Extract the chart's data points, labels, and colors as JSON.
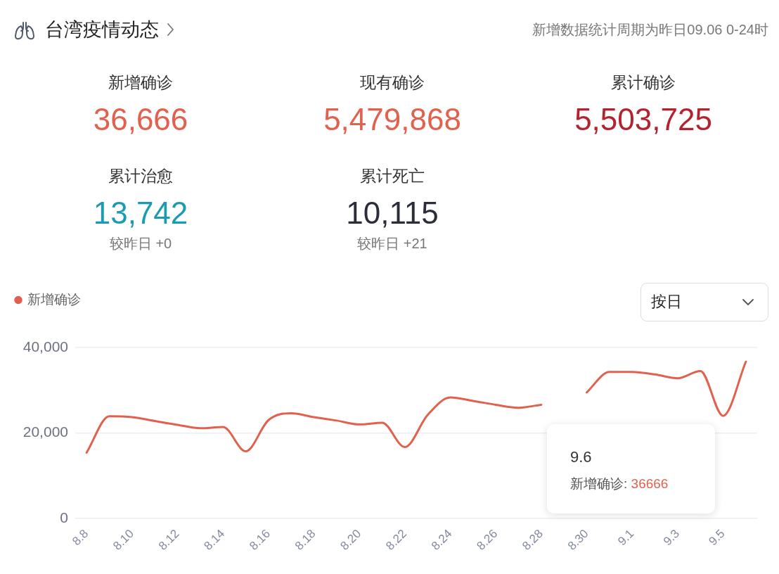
{
  "chart_data": [
    {
      "type": "other",
      "title": "台湾疫情动态",
      "subtitle": "新增数据统计周期为昨日09.06 0-24时",
      "categories": [
        "新增确诊",
        "现有确诊",
        "累计确诊",
        "累计治愈",
        "累计死亡"
      ],
      "value_labels": [
        "36,666",
        "5,479,868",
        "5,503,725",
        "13,742",
        "10,115"
      ],
      "colors": [
        "#e2604e",
        "#e2604e",
        "#b3222e",
        "#1a9bb0",
        "#2b2c3c"
      ],
      "annotations": [
        "较昨日 +0",
        "较昨日 +21"
      ]
    },
    {
      "type": "line",
      "categories": [
        "8.8",
        null,
        "8.10",
        null,
        "8.12",
        null,
        "8.14",
        null,
        "8.16",
        null,
        "8.18",
        null,
        "8.20",
        null,
        "8.22",
        null,
        "8.24",
        null,
        "8.26",
        null,
        "8.28",
        null,
        "8.30",
        null,
        "9.1",
        null,
        "9.3",
        null,
        "9.5",
        null
      ],
      "series": [
        {
          "name": "新增确诊",
          "color": "#e2604e",
          "values": [
            15400,
            23900,
            23700,
            22800,
            21900,
            21100,
            21400,
            15700,
            23000,
            24600,
            23700,
            22900,
            22000,
            22400,
            16700,
            24200,
            28300,
            27500,
            26600,
            25900,
            26600,
            null,
            29500,
            34300,
            34300,
            33700,
            32800,
            34500,
            24000,
            36666
          ]
        }
      ],
      "ylim": [
        0,
        40000
      ],
      "yticks": [
        0,
        {
          "value": 20000,
          "label": "20,000"
        },
        {
          "value": 40000,
          "label": "40,000"
        }
      ],
      "grid": "y",
      "legend": "top left",
      "marker": "none",
      "annotations": [
        "按日",
        "9.6",
        "新增确诊: 36666"
      ]
    }
  ]
}
